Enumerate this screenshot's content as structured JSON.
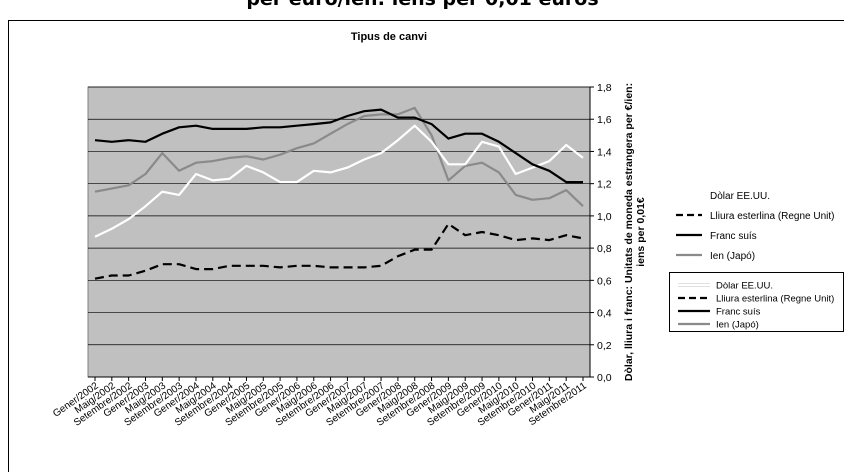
{
  "page": {
    "top_title": "per euro/ien: iens per 0,01 euros"
  },
  "chart_data": {
    "type": "line",
    "title": "Tipus de canvi",
    "ylabel_line1": "Dòlar, lliura i franc: Unitats de moneda estrangera per €/ien:",
    "ylabel_line2": "iens per 0,01€",
    "ylim": [
      0,
      1.8
    ],
    "y_ticks": [
      "0,0",
      "0,2",
      "0,4",
      "0,6",
      "0,8",
      "1,0",
      "1,2",
      "1,4",
      "1,6",
      "1,8"
    ],
    "grid": true,
    "y_axis_position": "right",
    "legend_position": "right",
    "categories": [
      "Gener/2002",
      "Maig/2002",
      "Setembre/2002",
      "Gener/2003",
      "Maig/2003",
      "Setembre/2003",
      "Gener/2004",
      "Maig/2004",
      "Setembre/2004",
      "Gener/2005",
      "Maig/2005",
      "Setembre/2005",
      "Gener/2006",
      "Maig/2006",
      "Setembre/2006",
      "Gener/2007",
      "Maig/2007",
      "Setembre/2007",
      "Gener/2008",
      "Maig/2008",
      "Setembre/2008",
      "Gener/2009",
      "Maig/2009",
      "Setembre/2009",
      "Gener/2010",
      "Maig/2010",
      "Setembre/2010",
      "Gener/2011",
      "Maig/2011",
      "Setembre/2011"
    ],
    "series": [
      {
        "name": "Dòlar EE.UU.",
        "color": "#ffffff",
        "style": "solid",
        "values": [
          0.87,
          0.92,
          0.98,
          1.06,
          1.15,
          1.13,
          1.26,
          1.22,
          1.23,
          1.31,
          1.27,
          1.21,
          1.21,
          1.28,
          1.27,
          1.3,
          1.35,
          1.39,
          1.47,
          1.56,
          1.46,
          1.32,
          1.32,
          1.46,
          1.43,
          1.26,
          1.3,
          1.34,
          1.44,
          1.36
        ]
      },
      {
        "name": "Lliura esterlina (Regne Unit)",
        "color": "#000000",
        "style": "dashed",
        "values": [
          0.61,
          0.63,
          0.63,
          0.66,
          0.7,
          0.7,
          0.67,
          0.67,
          0.69,
          0.69,
          0.69,
          0.68,
          0.69,
          0.69,
          0.68,
          0.68,
          0.68,
          0.69,
          0.75,
          0.79,
          0.79,
          0.95,
          0.88,
          0.9,
          0.88,
          0.85,
          0.86,
          0.85,
          0.88,
          0.86
        ]
      },
      {
        "name": "Franc suís",
        "color": "#000000",
        "style": "solid",
        "values": [
          1.47,
          1.46,
          1.47,
          1.46,
          1.51,
          1.55,
          1.56,
          1.54,
          1.54,
          1.54,
          1.55,
          1.55,
          1.56,
          1.57,
          1.58,
          1.62,
          1.65,
          1.66,
          1.61,
          1.61,
          1.57,
          1.48,
          1.51,
          1.51,
          1.46,
          1.39,
          1.32,
          1.28,
          1.21,
          1.21
        ]
      },
      {
        "name": "Ien (Japó)",
        "color": "#8a8a8a",
        "style": "solid",
        "values": [
          1.15,
          1.17,
          1.19,
          1.26,
          1.39,
          1.28,
          1.33,
          1.34,
          1.36,
          1.37,
          1.35,
          1.38,
          1.42,
          1.45,
          1.51,
          1.57,
          1.62,
          1.63,
          1.63,
          1.67,
          1.5,
          1.22,
          1.31,
          1.33,
          1.27,
          1.13,
          1.1,
          1.11,
          1.16,
          1.06
        ]
      }
    ]
  }
}
